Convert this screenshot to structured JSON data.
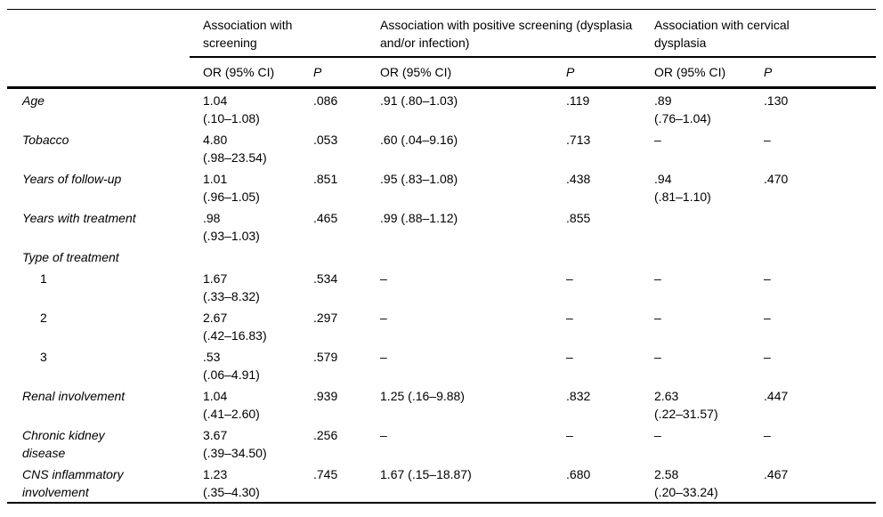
{
  "table": {
    "groups": [
      {
        "label": "Association with\nscreening"
      },
      {
        "label": "Association with positive screening (dysplasia\nand/or infection)"
      },
      {
        "label": "Association with cervical\ndysplasia"
      }
    ],
    "sub_headers": {
      "or": "OR (95% CI)",
      "p": "P"
    },
    "rows": [
      {
        "label": "Age",
        "italic": true,
        "indent": false,
        "cells": [
          "1.04\n(.10–1.08)",
          ".086",
          ".91 (.80–1.03)",
          ".119",
          ".89\n(.76–1.04)",
          ".130"
        ]
      },
      {
        "label": "Tobacco",
        "italic": true,
        "indent": false,
        "cells": [
          "4.80\n(.98–23.54)",
          ".053",
          ".60 (.04–9.16)",
          ".713",
          "–",
          "–"
        ]
      },
      {
        "label": "Years of follow-up",
        "italic": true,
        "indent": false,
        "cells": [
          "1.01\n(.96–1.05)",
          ".851",
          ".95 (.83–1.08)",
          ".438",
          ".94\n(.81–1.10)",
          ".470"
        ]
      },
      {
        "label": "Years with treatment",
        "italic": true,
        "indent": false,
        "cells": [
          ".98\n(.93–1.03)",
          ".465",
          ".99 (.88–1.12)",
          ".855",
          "",
          ""
        ]
      },
      {
        "label": "Type of treatment",
        "italic": true,
        "indent": false,
        "cells": [
          "",
          "",
          "",
          "",
          "",
          ""
        ]
      },
      {
        "label": "1",
        "italic": false,
        "indent": true,
        "cells": [
          "1.67\n(.33–8.32)",
          ".534",
          "–",
          "–",
          "–",
          "–"
        ]
      },
      {
        "label": "2",
        "italic": false,
        "indent": true,
        "cells": [
          "2.67\n(.42–16.83)",
          ".297",
          "–",
          "–",
          "–",
          "–"
        ]
      },
      {
        "label": "3",
        "italic": false,
        "indent": true,
        "cells": [
          ".53\n(.06–4.91)",
          ".579",
          "–",
          "–",
          "–",
          "–"
        ]
      },
      {
        "label": "Renal involvement",
        "italic": true,
        "indent": false,
        "cells": [
          "1.04\n(.41–2.60)",
          ".939",
          "1.25 (.16–9.88)",
          ".832",
          "2.63\n(.22–31.57)",
          ".447"
        ]
      },
      {
        "label": "Chronic kidney\ndisease",
        "italic": true,
        "indent": false,
        "cells": [
          "3.67\n(.39–34.50)",
          ".256",
          "–",
          "–",
          "–",
          "–"
        ]
      },
      {
        "label": "CNS inflammatory\ninvolvement",
        "italic": true,
        "indent": false,
        "cells": [
          "1.23\n(.35–4.30)",
          ".745",
          "1.67 (.15–18.87)",
          ".680",
          "2.58\n(.20–33.24)",
          ".467"
        ]
      }
    ]
  }
}
